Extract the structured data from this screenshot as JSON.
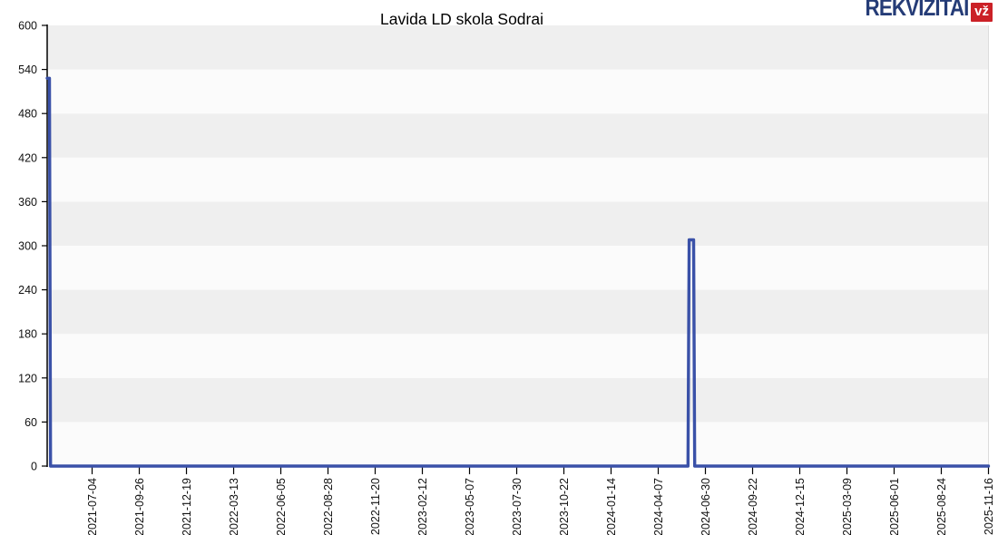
{
  "logo": {
    "text": "REKVIZITAI",
    "badge": "vž",
    "text_color": "#253c77",
    "badge_bg": "#cb2127",
    "badge_text_color": "#ffffff"
  },
  "chart_data": {
    "type": "line",
    "title": "Lavida LD skola Sodrai",
    "xlabel": "",
    "ylabel": "",
    "legend": "none",
    "ylim": [
      0,
      600
    ],
    "ytick_step": 60,
    "yticks": [
      600,
      540,
      480,
      420,
      360,
      300,
      240,
      180,
      120,
      60,
      0
    ],
    "x_range": [
      "2021-04-15",
      "2025-11-16"
    ],
    "categories": [
      "2021-07-04",
      "2021-09-26",
      "2021-12-19",
      "2022-03-13",
      "2022-06-05",
      "2022-08-28",
      "2022-11-20",
      "2023-02-12",
      "2023-05-07",
      "2023-07-30",
      "2023-10-22",
      "2024-01-14",
      "2024-04-07",
      "2024-06-30",
      "2024-09-22",
      "2024-12-15",
      "2025-03-09",
      "2025-06-01",
      "2025-08-24",
      "2025-11-16"
    ],
    "grid": "alternating horizontal bands",
    "band_color_odd": "#efefef",
    "band_color_even": "#fbfbfb",
    "axis_color": "#000000",
    "plot_border_color": "#dcdcdc",
    "series": [
      {
        "name": "Lavida LD skola Sodrai",
        "color": "#3a51a8",
        "points": [
          [
            "2021-04-15",
            528
          ],
          [
            "2021-04-19",
            528
          ],
          [
            "2021-04-21",
            0
          ],
          [
            "2024-05-30",
            0
          ],
          [
            "2024-06-01",
            308
          ],
          [
            "2024-06-09",
            308
          ],
          [
            "2024-06-11",
            0
          ],
          [
            "2025-11-16",
            0
          ]
        ]
      }
    ]
  }
}
